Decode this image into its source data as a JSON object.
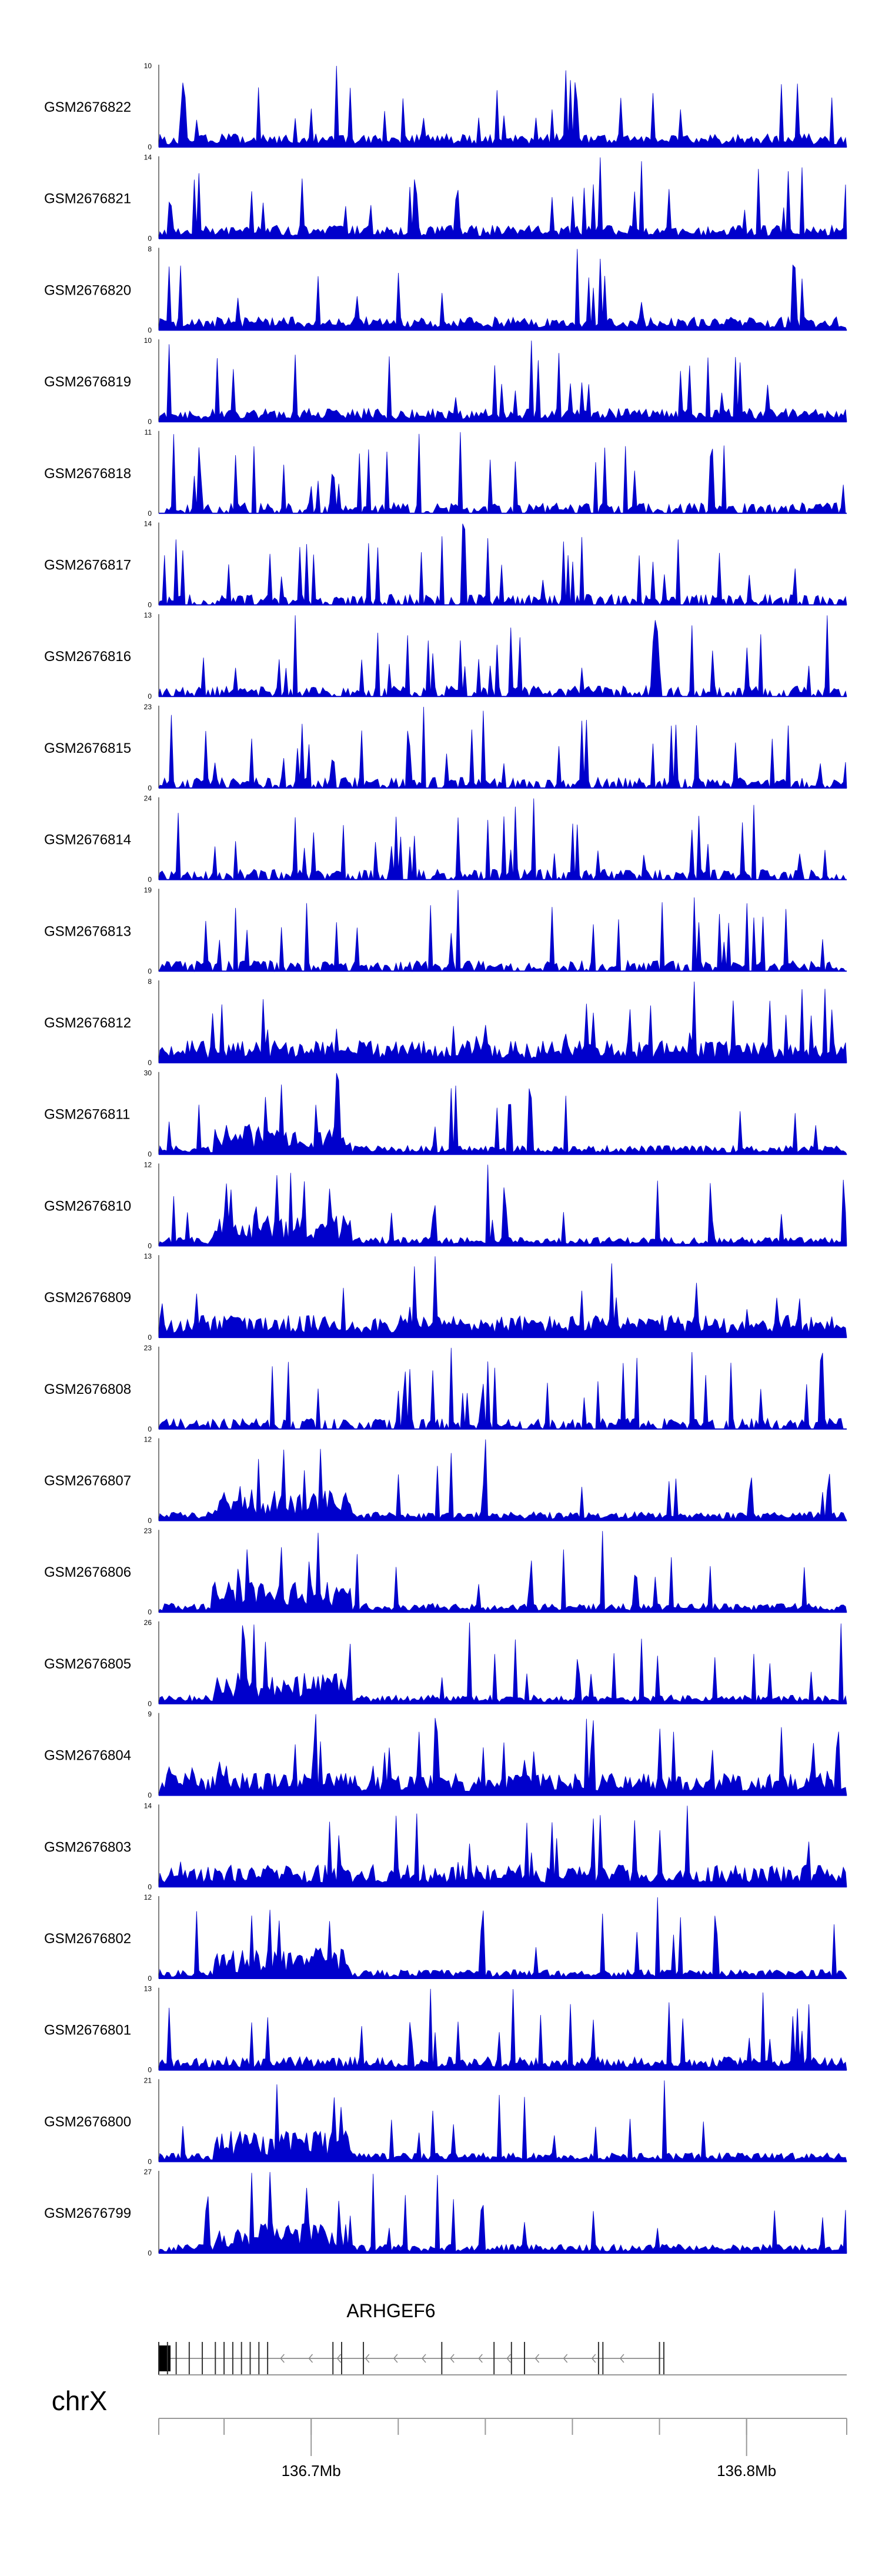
{
  "chart_data": {
    "type": "area",
    "tracks": [
      {
        "name": "GSM2676822",
        "max": 10,
        "min": 0,
        "profile": "balanced",
        "seed": 11
      },
      {
        "name": "GSM2676821",
        "max": 14,
        "min": 0,
        "profile": "balanced",
        "seed": 12
      },
      {
        "name": "GSM2676820",
        "max": 8,
        "min": 0,
        "profile": "balanced",
        "seed": 13
      },
      {
        "name": "GSM2676819",
        "max": 10,
        "min": 0,
        "profile": "balanced",
        "seed": 14
      },
      {
        "name": "GSM2676818",
        "max": 11,
        "min": 0,
        "profile": "sparse",
        "seed": 15
      },
      {
        "name": "GSM2676817",
        "max": 14,
        "min": 0,
        "profile": "sparse",
        "seed": 16
      },
      {
        "name": "GSM2676816",
        "max": 13,
        "min": 0,
        "profile": "sparse",
        "seed": 17
      },
      {
        "name": "GSM2676815",
        "max": 23,
        "min": 0,
        "profile": "sparse",
        "seed": 18
      },
      {
        "name": "GSM2676814",
        "max": 24,
        "min": 0,
        "profile": "sparse",
        "seed": 19
      },
      {
        "name": "GSM2676813",
        "max": 19,
        "min": 0,
        "profile": "sparse",
        "seed": 20
      },
      {
        "name": "GSM2676812",
        "max": 8,
        "min": 0,
        "profile": "dense",
        "seed": 21
      },
      {
        "name": "GSM2676811",
        "max": 30,
        "min": 0,
        "profile": "left",
        "seed": 22
      },
      {
        "name": "GSM2676810",
        "max": 12,
        "min": 0,
        "profile": "left",
        "seed": 23
      },
      {
        "name": "GSM2676809",
        "max": 13,
        "min": 0,
        "profile": "dense",
        "seed": 24
      },
      {
        "name": "GSM2676808",
        "max": 23,
        "min": 0,
        "profile": "sparse",
        "seed": 25
      },
      {
        "name": "GSM2676807",
        "max": 12,
        "min": 0,
        "profile": "left",
        "seed": 26
      },
      {
        "name": "GSM2676806",
        "max": 23,
        "min": 0,
        "profile": "left",
        "seed": 27
      },
      {
        "name": "GSM2676805",
        "max": 26,
        "min": 0,
        "profile": "left",
        "seed": 28
      },
      {
        "name": "GSM2676804",
        "max": 9,
        "min": 0,
        "profile": "dense",
        "seed": 29
      },
      {
        "name": "GSM2676803",
        "max": 14,
        "min": 0,
        "profile": "dense",
        "seed": 30
      },
      {
        "name": "GSM2676802",
        "max": 12,
        "min": 0,
        "profile": "left",
        "seed": 31
      },
      {
        "name": "GSM2676801",
        "max": 13,
        "min": 0,
        "profile": "balanced",
        "seed": 32
      },
      {
        "name": "GSM2676800",
        "max": 21,
        "min": 0,
        "profile": "left",
        "seed": 33
      },
      {
        "name": "GSM2676799",
        "max": 27,
        "min": 0,
        "profile": "left",
        "seed": 34
      }
    ],
    "x_range_mb": [
      136.665,
      136.823
    ],
    "gene": {
      "name": "ARHGEF6",
      "strand": "-",
      "start_mb": 136.665,
      "end_mb": 136.781,
      "exons_mb": [
        136.665,
        136.667,
        136.669,
        136.672,
        136.675,
        136.678,
        136.68,
        136.682,
        136.684,
        136.686,
        136.688,
        136.69,
        136.705,
        136.707,
        136.712,
        136.73,
        136.742,
        136.746,
        136.749,
        136.766,
        136.767,
        136.78,
        136.781
      ]
    },
    "chromosome": "chrX",
    "axis": {
      "major_ticks": [
        {
          "value": 136.7,
          "label": "136.7Mb"
        },
        {
          "value": 136.8,
          "label": "136.8Mb"
        }
      ],
      "minor_ticks": [
        136.665,
        136.68,
        136.7,
        136.72,
        136.74,
        136.76,
        136.78,
        136.8,
        136.823
      ]
    },
    "bar_color": "#0000cc"
  }
}
